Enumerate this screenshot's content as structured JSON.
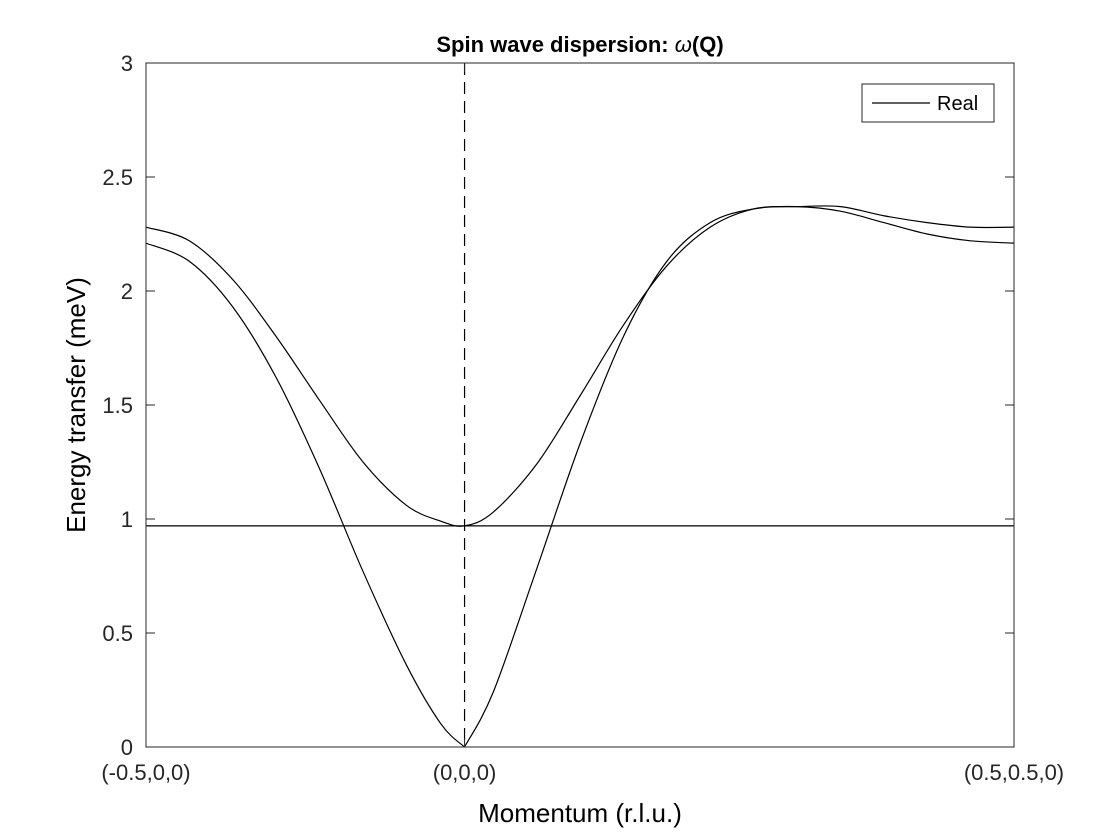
{
  "chart_data": {
    "type": "line",
    "title_prefix": "Spin wave dispersion: ",
    "title_symbol": "ω",
    "title_suffix": "(Q)",
    "xlabel": "Momentum (r.l.u.)",
    "ylabel": "Energy transfer (meV)",
    "ylim": [
      0,
      3
    ],
    "xlim": [
      0,
      1
    ],
    "grid": false,
    "legend_position": "top-right",
    "x_tick_labels": [
      {
        "x": 0,
        "label": "(-0.5,0,0)"
      },
      {
        "x": 0.367,
        "label": "(0,0,0)"
      },
      {
        "x": 1,
        "label": "(0.5,0.5,0)"
      }
    ],
    "y_ticks": [
      {
        "y": 0,
        "label": "0"
      },
      {
        "y": 0.5,
        "label": "0.5"
      },
      {
        "y": 1,
        "label": "1"
      },
      {
        "y": 1.5,
        "label": "1.5"
      },
      {
        "y": 2,
        "label": "2"
      },
      {
        "y": 2.5,
        "label": "2.5"
      },
      {
        "y": 3,
        "label": "3"
      }
    ],
    "vertical_line_x": 0.367,
    "legend_entries": [
      "Real"
    ],
    "series": [
      {
        "x": [
          0,
          0.05,
          0.1,
          0.15,
          0.2,
          0.25,
          0.3,
          0.34,
          0.367,
          0.4,
          0.45,
          0.5,
          0.55,
          0.6,
          0.65,
          0.7,
          0.75,
          0.8,
          0.85,
          0.9,
          0.95,
          1
        ],
        "values": [
          2.21,
          2.13,
          1.93,
          1.62,
          1.22,
          0.77,
          0.36,
          0.1,
          0,
          0.24,
          0.78,
          1.33,
          1.8,
          2.13,
          2.3,
          2.36,
          2.37,
          2.35,
          2.3,
          2.25,
          2.22,
          2.21
        ]
      },
      {
        "x": [
          0,
          0.05,
          0.1,
          0.15,
          0.2,
          0.25,
          0.3,
          0.34,
          0.367,
          0.4,
          0.45,
          0.5,
          0.55,
          0.6,
          0.65,
          0.7,
          0.75,
          0.8,
          0.85,
          0.9,
          0.95,
          1
        ],
        "values": [
          2.28,
          2.22,
          2.05,
          1.8,
          1.52,
          1.25,
          1.06,
          0.99,
          0.97,
          1.03,
          1.24,
          1.54,
          1.85,
          2.11,
          2.28,
          2.36,
          2.37,
          2.37,
          2.33,
          2.3,
          2.28,
          2.28
        ]
      },
      {
        "x": [
          0,
          1
        ],
        "values": [
          0.97,
          0.97
        ]
      }
    ]
  }
}
